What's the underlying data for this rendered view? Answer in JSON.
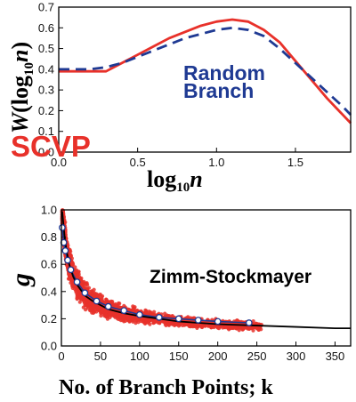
{
  "chart_data": [
    {
      "type": "line",
      "ylabel_main": "W",
      "ylabel_paren_open": "(log",
      "ylabel_sub": "10",
      "ylabel_var": "n",
      "ylabel_paren_close": ")",
      "xlabel_main": "log",
      "xlabel_sub": "10",
      "xlabel_var": "n",
      "xlim": [
        0.0,
        1.85
      ],
      "ylim": [
        0.0,
        0.7
      ],
      "x_ticks": [
        "0.0",
        "0.5",
        "1.0",
        "1.5"
      ],
      "y_ticks": [
        "0.0",
        "0.1",
        "0.2",
        "0.3",
        "0.4",
        "0.5",
        "0.6",
        "0.7"
      ],
      "annotations": {
        "scvp": "SCVP",
        "random_line1": "Random",
        "random_line2": "Branch"
      },
      "series": [
        {
          "name": "SCVP",
          "style": "solid",
          "color": "#e8312a",
          "x": [
            0.0,
            0.3,
            0.4,
            0.5,
            0.6,
            0.7,
            0.8,
            0.9,
            1.0,
            1.1,
            1.2,
            1.3,
            1.4,
            1.5,
            1.6,
            1.7,
            1.8,
            1.85
          ],
          "y": [
            0.39,
            0.39,
            0.43,
            0.47,
            0.51,
            0.55,
            0.58,
            0.61,
            0.63,
            0.64,
            0.63,
            0.59,
            0.53,
            0.44,
            0.35,
            0.26,
            0.18,
            0.14
          ]
        },
        {
          "name": "Random Branch",
          "style": "dashed",
          "color": "#1f3a93",
          "x": [
            0.0,
            0.1,
            0.2,
            0.3,
            0.4,
            0.5,
            0.6,
            0.7,
            0.8,
            0.9,
            1.0,
            1.1,
            1.2,
            1.3,
            1.4,
            1.5,
            1.6,
            1.7,
            1.8,
            1.85
          ],
          "y": [
            0.4,
            0.4,
            0.4,
            0.41,
            0.43,
            0.46,
            0.49,
            0.52,
            0.55,
            0.57,
            0.59,
            0.6,
            0.59,
            0.56,
            0.5,
            0.43,
            0.36,
            0.29,
            0.22,
            0.18
          ]
        }
      ]
    },
    {
      "type": "scatter",
      "ylabel": "g",
      "xlabel": "No. of Branch Points; k",
      "xlim": [
        0,
        370
      ],
      "ylim": [
        0.0,
        1.0
      ],
      "x_ticks": [
        "0",
        "50",
        "100",
        "150",
        "200",
        "250",
        "300",
        "350"
      ],
      "y_ticks": [
        "0.0",
        "0.2",
        "0.4",
        "0.6",
        "0.8",
        "1.0"
      ],
      "annotation": "Zimm-Stockmayer",
      "colors": {
        "scatter": "#e8312a",
        "theory": "#000000",
        "mean_line": "#1f3a93"
      },
      "theory_x": [
        1,
        2,
        4,
        6,
        8,
        10,
        15,
        20,
        25,
        30,
        40,
        50,
        60,
        80,
        100,
        125,
        150,
        175,
        200,
        250,
        300,
        350,
        370
      ],
      "theory_y": [
        0.99,
        0.93,
        0.81,
        0.72,
        0.66,
        0.6,
        0.51,
        0.45,
        0.41,
        0.37,
        0.33,
        0.3,
        0.27,
        0.24,
        0.22,
        0.2,
        0.18,
        0.17,
        0.16,
        0.15,
        0.14,
        0.13,
        0.13
      ],
      "mean_points_x": [
        1,
        3,
        5,
        8,
        12,
        20,
        30,
        45,
        60,
        80,
        100,
        125,
        150,
        175,
        200,
        240
      ],
      "mean_points_y": [
        0.87,
        0.76,
        0.7,
        0.63,
        0.56,
        0.47,
        0.39,
        0.33,
        0.29,
        0.26,
        0.23,
        0.21,
        0.2,
        0.19,
        0.18,
        0.17
      ]
    }
  ]
}
